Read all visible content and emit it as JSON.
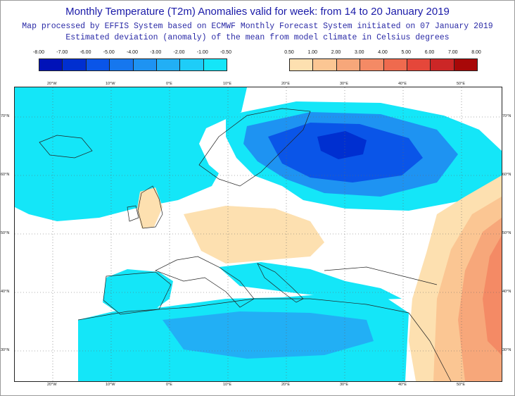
{
  "header": {
    "title": "Monthly Temperature (T2m) Anomalies valid for week: from 14 to 20 January 2019",
    "subtitle_1": "Map processed by EFFIS System based on ECMWF Monthly Forecast System initiated on 07 January 2019",
    "subtitle_2": "Estimated deviation (anomaly) of the mean from model climate in Celsius degrees"
  },
  "legend_cold": {
    "ticks": [
      "-8.00",
      "-7.00",
      "-6.00",
      "-5.00",
      "-4.00",
      "-3.00",
      "-2.00",
      "-1.00",
      "-0.50"
    ],
    "colors": [
      "#0012b8",
      "#002fd0",
      "#0a55e8",
      "#1677ee",
      "#1e93f2",
      "#22aff5",
      "#1ecdf8",
      "#14e6f8"
    ]
  },
  "legend_warm": {
    "ticks": [
      "0.50",
      "1.00",
      "2.00",
      "3.00",
      "4.00",
      "5.00",
      "6.00",
      "7.00",
      "8.00"
    ],
    "colors": [
      "#fde0b0",
      "#fbc693",
      "#f7a77a",
      "#f48a65",
      "#ef6a4e",
      "#e5473a",
      "#cc2626",
      "#a80808"
    ]
  },
  "map": {
    "lat_labels": [
      "70°N",
      "60°N",
      "50°N",
      "40°N",
      "30°N"
    ],
    "lon_labels": [
      "20°W",
      "10°W",
      "0°E",
      "10°E",
      "20°E",
      "30°E",
      "40°E",
      "50°E"
    ]
  }
}
